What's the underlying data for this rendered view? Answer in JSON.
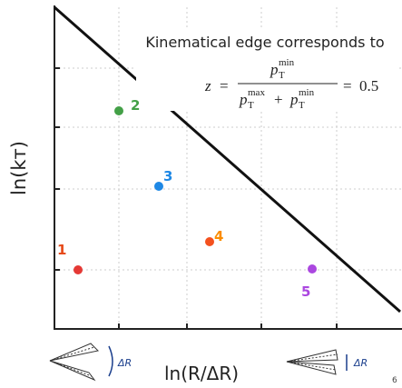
{
  "axes": {
    "y_label": "ln(kᴛ)",
    "x_label": "ln(R/ΔR)"
  },
  "annotation": "Kinematical edge corresponds to",
  "formula": {
    "lhs": "z",
    "equals": "=",
    "p": "p",
    "T": "T",
    "min": "min",
    "max": "max",
    "plus": "+",
    "rhs": "0.5"
  },
  "points": [
    {
      "label": "1"
    },
    {
      "label": "2"
    },
    {
      "label": "3"
    },
    {
      "label": "4"
    },
    {
      "label": "5"
    }
  ],
  "icons": {
    "wide_label": "ΔR",
    "narrow_label": "ΔR"
  },
  "page_number": "6"
}
